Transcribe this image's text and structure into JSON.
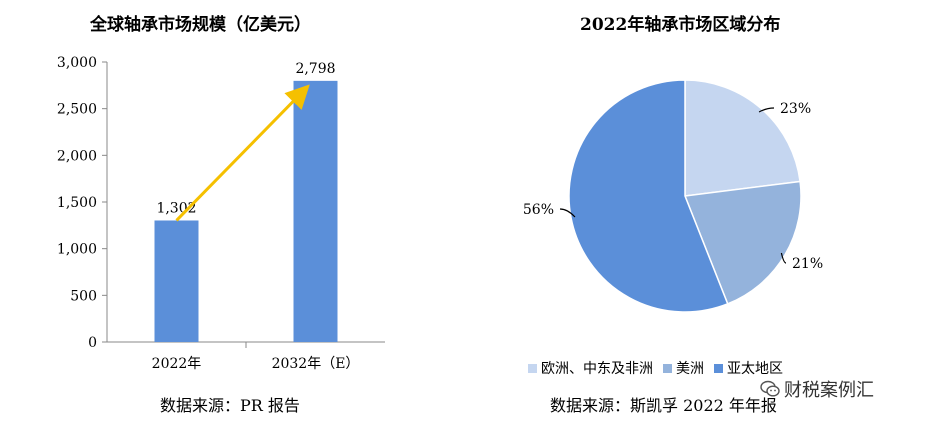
{
  "chart_data": [
    {
      "type": "bar",
      "title": "全球轴承市场规模（亿美元）",
      "categories": [
        "2022年",
        "2032年（E）"
      ],
      "values": [
        1302,
        2798
      ],
      "value_labels": [
        "1,302",
        "2,798"
      ],
      "ylim": [
        0,
        3000
      ],
      "yticks": [
        0,
        500,
        1000,
        1500,
        2000,
        2500,
        3000
      ],
      "ytick_labels": [
        "0",
        "500",
        "1,000",
        "1,500",
        "2,000",
        "2,500",
        "3,000"
      ],
      "grid": false,
      "colors": {
        "bar": "#5b8fd9",
        "arrow": "#f5c000"
      },
      "source": "数据来源：PR 报告"
    },
    {
      "type": "pie",
      "title": "2022年轴承市场区域分布",
      "slices": [
        {
          "label": "欧洲、中东及非洲",
          "value": 23,
          "text": "23%",
          "color": "#c5d6f0"
        },
        {
          "label": "美洲",
          "value": 21,
          "text": "21%",
          "color": "#94b3dc"
        },
        {
          "label": "亚太地区",
          "value": 56,
          "text": "56%",
          "color": "#5b8fd9"
        }
      ],
      "legend_position": "bottom",
      "source": "数据来源：斯凯孚 2022 年年报"
    }
  ],
  "watermark": {
    "text": "财税案例汇",
    "icon": "wechat-icon"
  }
}
